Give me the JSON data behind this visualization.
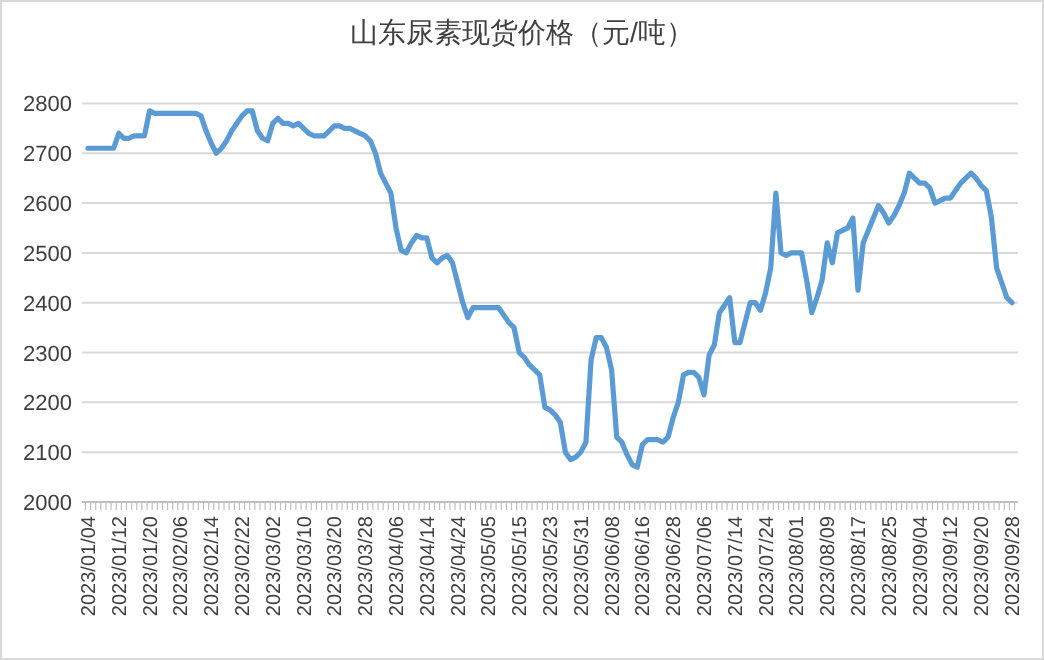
{
  "chart_data": {
    "type": "line",
    "title": "山东尿素现货价格（元/吨）",
    "categories": [
      "2023/01/04",
      null,
      null,
      null,
      null,
      null,
      "2023/01/12",
      null,
      null,
      null,
      null,
      null,
      "2023/01/20",
      null,
      null,
      null,
      null,
      null,
      "2023/02/06",
      null,
      null,
      null,
      null,
      null,
      "2023/02/14",
      null,
      null,
      null,
      null,
      null,
      "2023/02/22",
      null,
      null,
      null,
      null,
      null,
      "2023/03/02",
      null,
      null,
      null,
      null,
      null,
      "2023/03/10",
      null,
      null,
      null,
      null,
      null,
      "2023/03/20",
      null,
      null,
      null,
      null,
      null,
      "2023/03/28",
      null,
      null,
      null,
      null,
      null,
      "2023/04/06",
      null,
      null,
      null,
      null,
      null,
      "2023/04/14",
      null,
      null,
      null,
      null,
      null,
      "2023/04/24",
      null,
      null,
      null,
      null,
      null,
      "2023/05/05",
      null,
      null,
      null,
      null,
      null,
      "2023/05/15",
      null,
      null,
      null,
      null,
      null,
      "2023/05/23",
      null,
      null,
      null,
      null,
      null,
      "2023/05/31",
      null,
      null,
      null,
      null,
      null,
      "2023/06/08",
      null,
      null,
      null,
      null,
      null,
      "2023/06/16",
      null,
      null,
      null,
      null,
      null,
      "2023/06/28",
      null,
      null,
      null,
      null,
      null,
      "2023/07/06",
      null,
      null,
      null,
      null,
      null,
      "2023/07/14",
      null,
      null,
      null,
      null,
      null,
      "2023/07/24",
      null,
      null,
      null,
      null,
      null,
      "2023/08/01",
      null,
      null,
      null,
      null,
      null,
      "2023/08/09",
      null,
      null,
      null,
      null,
      null,
      "2023/08/17",
      null,
      null,
      null,
      null,
      null,
      "2023/08/25",
      null,
      null,
      null,
      null,
      null,
      "2023/09/04",
      null,
      null,
      null,
      null,
      null,
      "2023/09/12",
      null,
      null,
      null,
      null,
      null,
      "2023/09/20",
      null,
      null,
      null,
      null,
      null,
      "2023/09/28"
    ],
    "series": [
      {
        "color": "#5b9bd5",
        "values": [
          2710,
          2710,
          2710,
          2710,
          2710,
          2710,
          2740,
          2730,
          2730,
          2735,
          2735,
          2735,
          2785,
          2780,
          2780,
          2780,
          2780,
          2780,
          2780,
          2780,
          2780,
          2780,
          2775,
          2745,
          2720,
          2700,
          2710,
          2725,
          2745,
          2760,
          2775,
          2785,
          2785,
          2745,
          2730,
          2725,
          2760,
          2770,
          2760,
          2760,
          2755,
          2760,
          2750,
          2740,
          2735,
          2735,
          2735,
          2745,
          2755,
          2755,
          2750,
          2750,
          2745,
          2740,
          2735,
          2725,
          2700,
          2660,
          2640,
          2620,
          2550,
          2505,
          2500,
          2520,
          2535,
          2530,
          2530,
          2490,
          2480,
          2490,
          2495,
          2480,
          2440,
          2400,
          2370,
          2390,
          2390,
          2390,
          2390,
          2390,
          2390,
          2375,
          2360,
          2350,
          2300,
          2290,
          2275,
          2265,
          2255,
          2190,
          2185,
          2175,
          2160,
          2100,
          2085,
          2090,
          2100,
          2120,
          2285,
          2330,
          2330,
          2310,
          2265,
          2130,
          2120,
          2095,
          2075,
          2070,
          2115,
          2125,
          2125,
          2125,
          2120,
          2130,
          2170,
          2200,
          2255,
          2260,
          2260,
          2250,
          2215,
          2295,
          2315,
          2380,
          2395,
          2410,
          2320,
          2320,
          2360,
          2400,
          2400,
          2385,
          2420,
          2470,
          2620,
          2500,
          2495,
          2500,
          2500,
          2500,
          2445,
          2380,
          2410,
          2445,
          2520,
          2480,
          2540,
          2545,
          2550,
          2570,
          2425,
          2520,
          2545,
          2570,
          2595,
          2580,
          2560,
          2575,
          2595,
          2620,
          2660,
          2650,
          2640,
          2640,
          2630,
          2600,
          2605,
          2610,
          2610,
          2625,
          2640,
          2650,
          2660,
          2650,
          2635,
          2625,
          2570,
          2470,
          2440,
          2410,
          2400
        ]
      }
    ],
    "ylim": [
      2000,
      2800
    ],
    "yticks": [
      2000,
      2100,
      2200,
      2300,
      2400,
      2500,
      2600,
      2700,
      2800
    ],
    "grid": "y"
  }
}
